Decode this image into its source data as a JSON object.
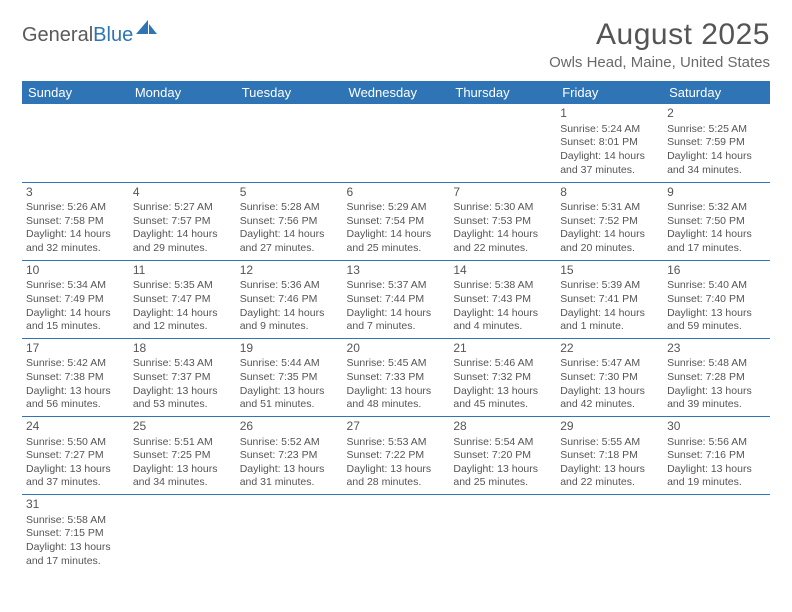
{
  "logo": {
    "text1": "General",
    "text2": "Blue"
  },
  "title": "August 2025",
  "location": "Owls Head, Maine, United States",
  "colors": {
    "header_bg": "#2f74b5",
    "header_text": "#ffffff",
    "cell_border": "#2f74b5",
    "body_text": "#555555"
  },
  "day_headers": [
    "Sunday",
    "Monday",
    "Tuesday",
    "Wednesday",
    "Thursday",
    "Friday",
    "Saturday"
  ],
  "weeks": [
    [
      null,
      null,
      null,
      null,
      null,
      {
        "d": "1",
        "sr": "Sunrise: 5:24 AM",
        "ss": "Sunset: 8:01 PM",
        "dl": "Daylight: 14 hours and 37 minutes."
      },
      {
        "d": "2",
        "sr": "Sunrise: 5:25 AM",
        "ss": "Sunset: 7:59 PM",
        "dl": "Daylight: 14 hours and 34 minutes."
      }
    ],
    [
      {
        "d": "3",
        "sr": "Sunrise: 5:26 AM",
        "ss": "Sunset: 7:58 PM",
        "dl": "Daylight: 14 hours and 32 minutes."
      },
      {
        "d": "4",
        "sr": "Sunrise: 5:27 AM",
        "ss": "Sunset: 7:57 PM",
        "dl": "Daylight: 14 hours and 29 minutes."
      },
      {
        "d": "5",
        "sr": "Sunrise: 5:28 AM",
        "ss": "Sunset: 7:56 PM",
        "dl": "Daylight: 14 hours and 27 minutes."
      },
      {
        "d": "6",
        "sr": "Sunrise: 5:29 AM",
        "ss": "Sunset: 7:54 PM",
        "dl": "Daylight: 14 hours and 25 minutes."
      },
      {
        "d": "7",
        "sr": "Sunrise: 5:30 AM",
        "ss": "Sunset: 7:53 PM",
        "dl": "Daylight: 14 hours and 22 minutes."
      },
      {
        "d": "8",
        "sr": "Sunrise: 5:31 AM",
        "ss": "Sunset: 7:52 PM",
        "dl": "Daylight: 14 hours and 20 minutes."
      },
      {
        "d": "9",
        "sr": "Sunrise: 5:32 AM",
        "ss": "Sunset: 7:50 PM",
        "dl": "Daylight: 14 hours and 17 minutes."
      }
    ],
    [
      {
        "d": "10",
        "sr": "Sunrise: 5:34 AM",
        "ss": "Sunset: 7:49 PM",
        "dl": "Daylight: 14 hours and 15 minutes."
      },
      {
        "d": "11",
        "sr": "Sunrise: 5:35 AM",
        "ss": "Sunset: 7:47 PM",
        "dl": "Daylight: 14 hours and 12 minutes."
      },
      {
        "d": "12",
        "sr": "Sunrise: 5:36 AM",
        "ss": "Sunset: 7:46 PM",
        "dl": "Daylight: 14 hours and 9 minutes."
      },
      {
        "d": "13",
        "sr": "Sunrise: 5:37 AM",
        "ss": "Sunset: 7:44 PM",
        "dl": "Daylight: 14 hours and 7 minutes."
      },
      {
        "d": "14",
        "sr": "Sunrise: 5:38 AM",
        "ss": "Sunset: 7:43 PM",
        "dl": "Daylight: 14 hours and 4 minutes."
      },
      {
        "d": "15",
        "sr": "Sunrise: 5:39 AM",
        "ss": "Sunset: 7:41 PM",
        "dl": "Daylight: 14 hours and 1 minute."
      },
      {
        "d": "16",
        "sr": "Sunrise: 5:40 AM",
        "ss": "Sunset: 7:40 PM",
        "dl": "Daylight: 13 hours and 59 minutes."
      }
    ],
    [
      {
        "d": "17",
        "sr": "Sunrise: 5:42 AM",
        "ss": "Sunset: 7:38 PM",
        "dl": "Daylight: 13 hours and 56 minutes."
      },
      {
        "d": "18",
        "sr": "Sunrise: 5:43 AM",
        "ss": "Sunset: 7:37 PM",
        "dl": "Daylight: 13 hours and 53 minutes."
      },
      {
        "d": "19",
        "sr": "Sunrise: 5:44 AM",
        "ss": "Sunset: 7:35 PM",
        "dl": "Daylight: 13 hours and 51 minutes."
      },
      {
        "d": "20",
        "sr": "Sunrise: 5:45 AM",
        "ss": "Sunset: 7:33 PM",
        "dl": "Daylight: 13 hours and 48 minutes."
      },
      {
        "d": "21",
        "sr": "Sunrise: 5:46 AM",
        "ss": "Sunset: 7:32 PM",
        "dl": "Daylight: 13 hours and 45 minutes."
      },
      {
        "d": "22",
        "sr": "Sunrise: 5:47 AM",
        "ss": "Sunset: 7:30 PM",
        "dl": "Daylight: 13 hours and 42 minutes."
      },
      {
        "d": "23",
        "sr": "Sunrise: 5:48 AM",
        "ss": "Sunset: 7:28 PM",
        "dl": "Daylight: 13 hours and 39 minutes."
      }
    ],
    [
      {
        "d": "24",
        "sr": "Sunrise: 5:50 AM",
        "ss": "Sunset: 7:27 PM",
        "dl": "Daylight: 13 hours and 37 minutes."
      },
      {
        "d": "25",
        "sr": "Sunrise: 5:51 AM",
        "ss": "Sunset: 7:25 PM",
        "dl": "Daylight: 13 hours and 34 minutes."
      },
      {
        "d": "26",
        "sr": "Sunrise: 5:52 AM",
        "ss": "Sunset: 7:23 PM",
        "dl": "Daylight: 13 hours and 31 minutes."
      },
      {
        "d": "27",
        "sr": "Sunrise: 5:53 AM",
        "ss": "Sunset: 7:22 PM",
        "dl": "Daylight: 13 hours and 28 minutes."
      },
      {
        "d": "28",
        "sr": "Sunrise: 5:54 AM",
        "ss": "Sunset: 7:20 PM",
        "dl": "Daylight: 13 hours and 25 minutes."
      },
      {
        "d": "29",
        "sr": "Sunrise: 5:55 AM",
        "ss": "Sunset: 7:18 PM",
        "dl": "Daylight: 13 hours and 22 minutes."
      },
      {
        "d": "30",
        "sr": "Sunrise: 5:56 AM",
        "ss": "Sunset: 7:16 PM",
        "dl": "Daylight: 13 hours and 19 minutes."
      }
    ],
    [
      {
        "d": "31",
        "sr": "Sunrise: 5:58 AM",
        "ss": "Sunset: 7:15 PM",
        "dl": "Daylight: 13 hours and 17 minutes."
      },
      null,
      null,
      null,
      null,
      null,
      null
    ]
  ]
}
